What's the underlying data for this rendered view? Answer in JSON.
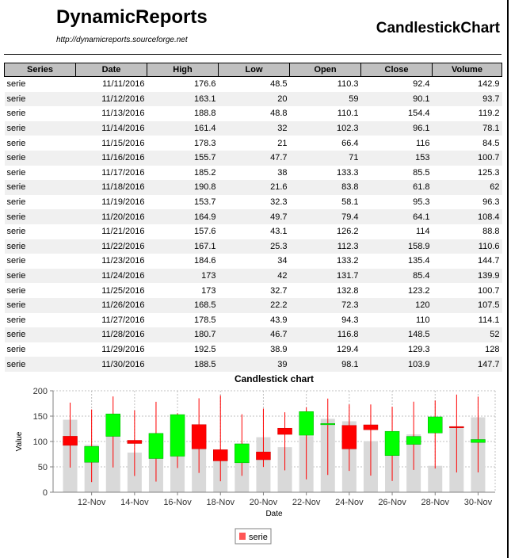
{
  "header": {
    "brand": "DynamicReports",
    "url": "http://dynamicreports.sourceforge.net",
    "report_title": "CandlestickChart"
  },
  "table": {
    "columns": [
      "Series",
      "Date",
      "High",
      "Low",
      "Open",
      "Close",
      "Volume"
    ],
    "rows": [
      [
        "serie",
        "11/11/2016",
        "176.6",
        "48.5",
        "110.3",
        "92.4",
        "142.9"
      ],
      [
        "serie",
        "11/12/2016",
        "163.1",
        "20",
        "59",
        "90.1",
        "93.7"
      ],
      [
        "serie",
        "11/13/2016",
        "188.8",
        "48.8",
        "110.1",
        "154.4",
        "119.2"
      ],
      [
        "serie",
        "11/14/2016",
        "161.4",
        "32",
        "102.3",
        "96.1",
        "78.1"
      ],
      [
        "serie",
        "11/15/2016",
        "178.3",
        "21",
        "66.4",
        "116",
        "84.5"
      ],
      [
        "serie",
        "11/16/2016",
        "155.7",
        "47.7",
        "71",
        "153",
        "100.7"
      ],
      [
        "serie",
        "11/17/2016",
        "185.2",
        "38",
        "133.3",
        "85.5",
        "125.3"
      ],
      [
        "serie",
        "11/18/2016",
        "190.8",
        "21.6",
        "83.8",
        "61.8",
        "62"
      ],
      [
        "serie",
        "11/19/2016",
        "153.7",
        "32.3",
        "58.1",
        "95.3",
        "96.3"
      ],
      [
        "serie",
        "11/20/2016",
        "164.9",
        "49.7",
        "79.4",
        "64.1",
        "108.4"
      ],
      [
        "serie",
        "11/21/2016",
        "157.6",
        "43.1",
        "126.2",
        "114",
        "88.8"
      ],
      [
        "serie",
        "11/22/2016",
        "167.1",
        "25.3",
        "112.3",
        "158.9",
        "110.6"
      ],
      [
        "serie",
        "11/23/2016",
        "184.6",
        "34",
        "133.2",
        "135.4",
        "144.7"
      ],
      [
        "serie",
        "11/24/2016",
        "173",
        "42",
        "131.7",
        "85.4",
        "139.9"
      ],
      [
        "serie",
        "11/25/2016",
        "173",
        "32.7",
        "132.8",
        "123.2",
        "100.7"
      ],
      [
        "serie",
        "11/26/2016",
        "168.5",
        "22.2",
        "72.3",
        "120",
        "107.5"
      ],
      [
        "serie",
        "11/27/2016",
        "178.5",
        "43.9",
        "94.3",
        "110",
        "114.1"
      ],
      [
        "serie",
        "11/28/2016",
        "180.7",
        "46.7",
        "116.8",
        "148.5",
        "52"
      ],
      [
        "serie",
        "11/29/2016",
        "192.5",
        "38.9",
        "129.4",
        "129.3",
        "128"
      ],
      [
        "serie",
        "11/30/2016",
        "188.5",
        "39",
        "98.1",
        "103.9",
        "147.7"
      ]
    ]
  },
  "chart_data": {
    "type": "candlestick",
    "title": "Candlestick chart",
    "xlabel": "Date",
    "ylabel": "Value",
    "ylim": [
      0,
      200
    ],
    "yticks": [
      "0",
      "50",
      "100",
      "150",
      "200"
    ],
    "xtick_labels": [
      "12-Nov",
      "14-Nov",
      "16-Nov",
      "18-Nov",
      "20-Nov",
      "22-Nov",
      "24-Nov",
      "26-Nov",
      "28-Nov",
      "30-Nov"
    ],
    "x": [
      "11-Nov",
      "12-Nov",
      "13-Nov",
      "14-Nov",
      "15-Nov",
      "16-Nov",
      "17-Nov",
      "18-Nov",
      "19-Nov",
      "20-Nov",
      "21-Nov",
      "22-Nov",
      "23-Nov",
      "24-Nov",
      "25-Nov",
      "26-Nov",
      "27-Nov",
      "28-Nov",
      "29-Nov",
      "30-Nov"
    ],
    "high": [
      176.6,
      163.1,
      188.8,
      161.4,
      178.3,
      155.7,
      185.2,
      190.8,
      153.7,
      164.9,
      157.6,
      167.1,
      184.6,
      173,
      173,
      168.5,
      178.5,
      180.7,
      192.5,
      188.5
    ],
    "low": [
      48.5,
      20,
      48.8,
      32,
      21,
      47.7,
      38,
      21.6,
      32.3,
      49.7,
      43.1,
      25.3,
      34,
      42,
      32.7,
      22.2,
      43.9,
      46.7,
      38.9,
      39
    ],
    "open": [
      110.3,
      59,
      110.1,
      102.3,
      66.4,
      71,
      133.3,
      83.8,
      58.1,
      79.4,
      126.2,
      112.3,
      133.2,
      131.7,
      132.8,
      72.3,
      94.3,
      116.8,
      129.4,
      98.1
    ],
    "close": [
      92.4,
      90.1,
      154.4,
      96.1,
      116,
      153,
      85.5,
      61.8,
      95.3,
      64.1,
      114,
      158.9,
      135.4,
      85.4,
      123.2,
      120,
      110,
      148.5,
      129.3,
      103.9
    ],
    "volume": [
      142.9,
      93.7,
      119.2,
      78.1,
      84.5,
      100.7,
      125.3,
      62,
      96.3,
      108.4,
      88.8,
      110.6,
      144.7,
      139.9,
      100.7,
      107.5,
      114.1,
      52,
      128,
      147.7
    ],
    "legend": [
      "serie"
    ],
    "legend_position": "bottom",
    "grid": true,
    "colors": {
      "up": "#00ff00",
      "down": "#ff0000",
      "wick": "#ff0000",
      "volume": "#d9d9d9",
      "legend": "#ff5555"
    }
  }
}
